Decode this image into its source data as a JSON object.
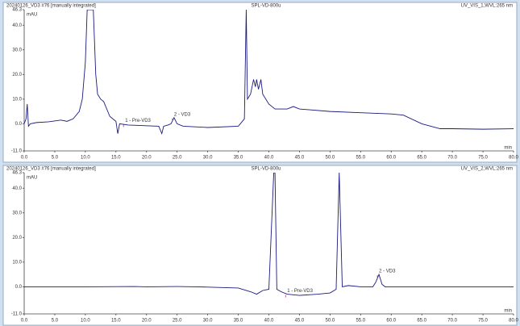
{
  "chart_data": [
    {
      "type": "line",
      "header_left": "20240126_VD3 #76 [manually integrated]",
      "header_center": "SPL-VD-800u",
      "header_right": "UV_VIS_1,WVL:265 nm",
      "y_unit": "mAU",
      "x_unit": "min",
      "xlim": [
        0,
        80
      ],
      "ylim": [
        -11,
        46.3
      ],
      "xticks": [
        {
          "value": 0,
          "label": "0.0"
        },
        {
          "value": 5,
          "label": "5.0"
        },
        {
          "value": 10,
          "label": "10.0"
        },
        {
          "value": 15,
          "label": "15.0"
        },
        {
          "value": 20,
          "label": "20.0"
        },
        {
          "value": 25,
          "label": "25.0"
        },
        {
          "value": 30,
          "label": "30.0"
        },
        {
          "value": 35,
          "label": "35.0"
        },
        {
          "value": 40,
          "label": "40.0"
        },
        {
          "value": 45,
          "label": "45.0"
        },
        {
          "value": 50,
          "label": "50.0"
        },
        {
          "value": 55,
          "label": "55.0"
        },
        {
          "value": 60,
          "label": "60.0"
        },
        {
          "value": 65,
          "label": "65.0"
        },
        {
          "value": 70,
          "label": "70.0"
        },
        {
          "value": 75,
          "label": "75.0"
        },
        {
          "value": 80,
          "label": "80.0"
        }
      ],
      "yticks": [
        {
          "value": -11,
          "label": "-11.0"
        },
        {
          "value": 0,
          "label": "0.0"
        },
        {
          "value": 10,
          "label": "10.0"
        },
        {
          "value": 20,
          "label": "20.0"
        },
        {
          "value": 30,
          "label": "30.0"
        },
        {
          "value": 40,
          "label": "40.0"
        },
        46.3
      ],
      "color": "#1a1a80",
      "x": [
        0,
        0.3,
        0.5,
        0.7,
        1,
        2,
        4,
        6,
        7,
        8,
        9,
        9.5,
        10,
        10.3,
        10.6,
        11,
        11.3,
        11.7,
        12,
        12.5,
        13,
        14,
        15,
        15.3,
        15.6,
        17,
        22,
        22.5,
        22.8,
        23.5,
        24,
        24.5,
        25,
        26,
        30,
        35,
        36,
        36.3,
        36.5,
        37,
        37.5,
        37.8,
        38,
        38.3,
        38.7,
        39,
        40,
        41,
        43,
        44,
        45,
        50,
        55,
        60,
        62,
        65,
        68,
        70,
        75,
        80
      ],
      "values": [
        0,
        2,
        8,
        -1,
        0,
        0.5,
        0.8,
        1.5,
        1,
        2,
        5,
        10,
        25,
        46.3,
        46.3,
        46.3,
        46.3,
        20,
        12,
        10,
        9,
        3,
        1,
        -4,
        0,
        -0.5,
        -1,
        -4,
        -1,
        -0.5,
        0,
        2.5,
        0,
        -1,
        -1.5,
        -1,
        2,
        46.3,
        10,
        12,
        18,
        15,
        18,
        14,
        18,
        12,
        8,
        6,
        6,
        7,
        6,
        5,
        4.5,
        4,
        3.5,
        0,
        -2,
        -2,
        -2.2,
        -2
      ],
      "annotations": [
        {
          "text": "1 - Pre-VD3",
          "x": 16.5,
          "y": 0
        },
        {
          "text": "2 - VD3",
          "x": 24.5,
          "y": 2.5
        }
      ]
    },
    {
      "type": "line",
      "header_left": "20240126_VD3 #76 [manually integrated]",
      "header_center": "SPL-VD-800u",
      "header_right": "UV_VIS_2,WVL:265 nm",
      "y_unit": "mAU",
      "x_unit": "min",
      "xlim": [
        0,
        80
      ],
      "ylim": [
        -11,
        46.3
      ],
      "xticks": [
        {
          "value": 0,
          "label": "0.0"
        },
        {
          "value": 5,
          "label": "5.0"
        },
        {
          "value": 10,
          "label": "10.0"
        },
        {
          "value": 15,
          "label": "15.0"
        },
        {
          "value": 20,
          "label": "20.0"
        },
        {
          "value": 25,
          "label": "25.0"
        },
        {
          "value": 30,
          "label": "30.0"
        },
        {
          "value": 35,
          "label": "35.0"
        },
        {
          "value": 40,
          "label": "40.0"
        },
        {
          "value": 45,
          "label": "45.0"
        },
        {
          "value": 50,
          "label": "50.0"
        },
        {
          "value": 55,
          "label": "55.0"
        },
        {
          "value": 60,
          "label": "60.0"
        },
        {
          "value": 65,
          "label": "65.0"
        },
        {
          "value": 70,
          "label": "70.0"
        },
        {
          "value": 75,
          "label": "75.0"
        },
        {
          "value": 80,
          "label": "80.0"
        }
      ],
      "yticks": [
        {
          "value": -11,
          "label": "-11.0"
        },
        {
          "value": 0,
          "label": "0.0"
        },
        {
          "value": 10,
          "label": "10.0"
        },
        {
          "value": 20,
          "label": "20.0"
        },
        {
          "value": 30,
          "label": "30.0"
        },
        {
          "value": 40,
          "label": "40.0"
        },
        46.3
      ],
      "color": "#1a1a80",
      "x": [
        0,
        10,
        18,
        20,
        25,
        28,
        35,
        37,
        38,
        39,
        40,
        40.8,
        41,
        41.3,
        42,
        43,
        45,
        48,
        50,
        51,
        51.5,
        52,
        53,
        55,
        57,
        57.5,
        58,
        58.5,
        59,
        80
      ],
      "values": [
        0,
        0,
        0.1,
        0,
        0.1,
        0,
        -0.5,
        -2,
        -3,
        -1.5,
        -1,
        46.3,
        46.3,
        -1,
        -2,
        -3,
        -3.5,
        -3,
        -2.5,
        -1,
        46.3,
        0,
        0.5,
        0,
        0,
        2,
        5,
        1,
        0,
        0
      ],
      "annotations": [
        {
          "text": "1 - Pre-VD3",
          "x": 43,
          "y": -3
        },
        {
          "text": "2 - VD3",
          "x": 58,
          "y": 5
        }
      ]
    }
  ]
}
